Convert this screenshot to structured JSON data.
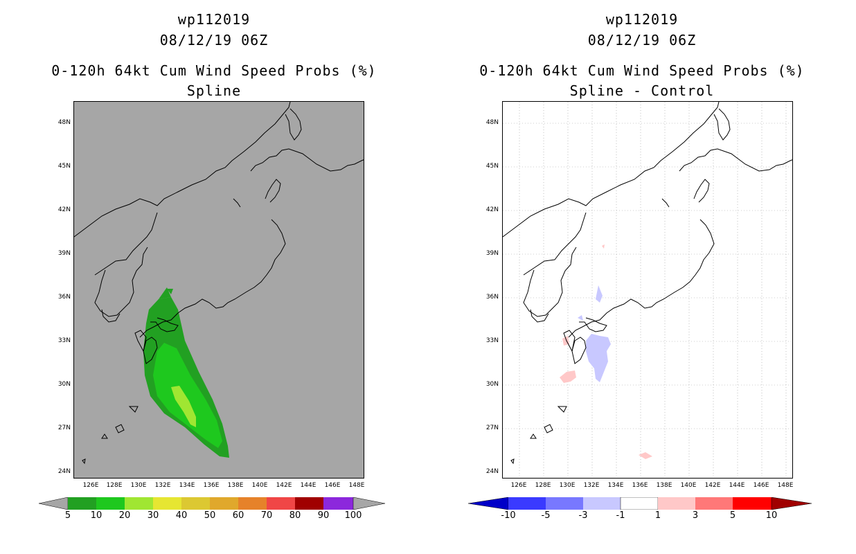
{
  "panels": [
    {
      "id": "left",
      "storm_id": "wp112019",
      "datetime": "08/12/19 06Z",
      "product": "0-120h 64kt Cum Wind Speed Probs (%)",
      "variant": "Spline",
      "background": "#a6a6a6",
      "lat_labels": [
        "48N",
        "45N",
        "42N",
        "39N",
        "36N",
        "33N",
        "30N",
        "27N",
        "24N"
      ],
      "lon_labels": [
        "126E",
        "128E",
        "130E",
        "132E",
        "134E",
        "136E",
        "138E",
        "140E",
        "142E",
        "144E",
        "146E",
        "148E"
      ],
      "colorbar": {
        "labels": [
          "5",
          "10",
          "20",
          "30",
          "40",
          "50",
          "60",
          "70",
          "80",
          "90",
          "100"
        ],
        "colors": [
          "#22a022",
          "#1ec81e",
          "#a0e632",
          "#e6e632",
          "#dcc832",
          "#e0a82c",
          "#e6822a",
          "#f04646",
          "#a00000",
          "#8c28dc"
        ]
      }
    },
    {
      "id": "right",
      "storm_id": "wp112019",
      "datetime": "08/12/19 06Z",
      "product": "0-120h 64kt Cum Wind Speed Probs (%)",
      "variant": "Spline - Control",
      "background": "#ffffff",
      "lat_labels": [
        "48N",
        "45N",
        "42N",
        "39N",
        "36N",
        "33N",
        "30N",
        "27N",
        "24N"
      ],
      "lon_labels": [
        "126E",
        "128E",
        "130E",
        "132E",
        "134E",
        "136E",
        "138E",
        "140E",
        "142E",
        "144E",
        "146E",
        "148E"
      ],
      "colorbar": {
        "labels": [
          "-10",
          "-5",
          "-3",
          "-1",
          "1",
          "3",
          "5",
          "10"
        ],
        "colors": [
          "#0000c8",
          "#3a3aff",
          "#7878ff",
          "#c8c8ff",
          "#ffffff",
          "#ffc8c8",
          "#ff7878",
          "#ff0000",
          "#a00000"
        ]
      }
    }
  ]
}
